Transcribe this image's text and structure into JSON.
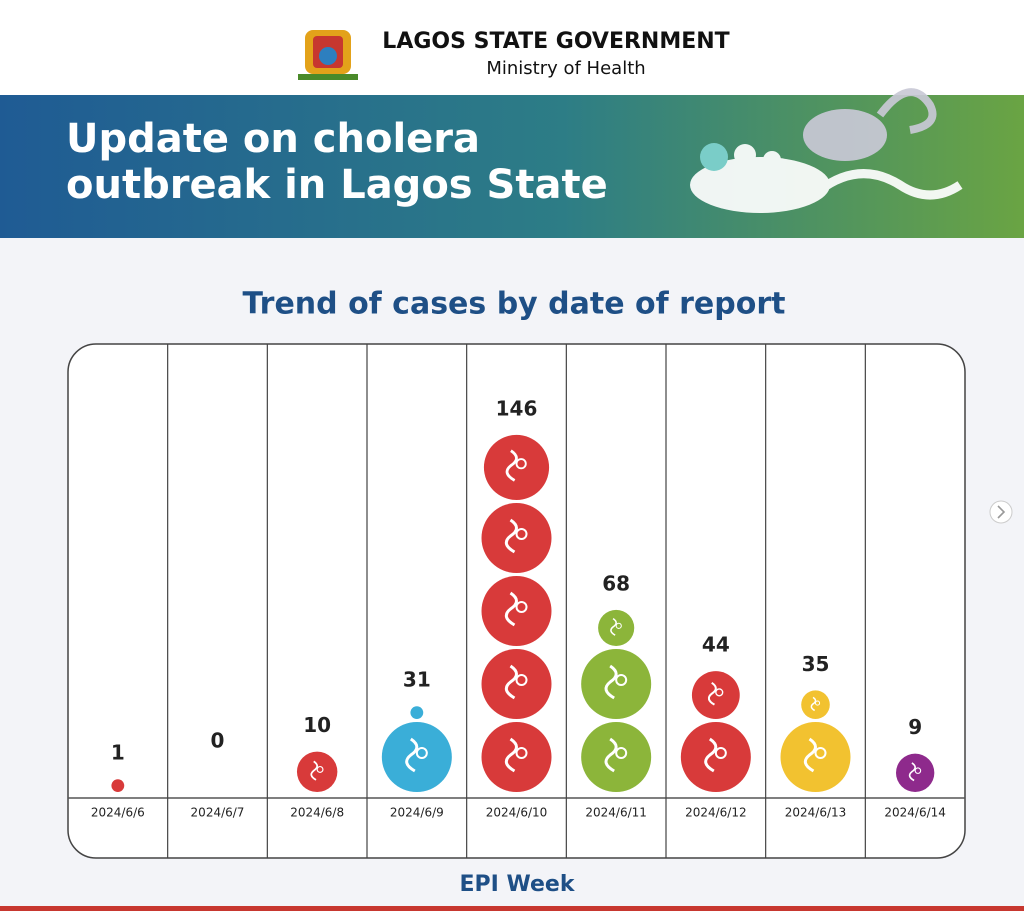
{
  "header": {
    "org": "LAGOS STATE GOVERNMENT",
    "ministry": "Ministry of Health",
    "banner_title": [
      "Update on cholera",
      "outbreak in Lagos State"
    ]
  },
  "chart_data": {
    "type": "pictogram",
    "title": "Trend of cases by date of report",
    "x_label": "EPI Week",
    "categories": [
      "2024/6/6",
      "2024/6/7",
      "2024/6/8",
      "2024/6/9",
      "2024/6/10",
      "2024/6/11",
      "2024/6/12",
      "2024/6/13",
      "2024/6/14"
    ],
    "values": [
      1,
      0,
      10,
      31,
      146,
      68,
      44,
      35,
      9
    ],
    "colors": [
      "#d83a3a",
      null,
      "#d83a3a",
      "#3aaed8",
      "#d83a3a",
      "#8cb53a",
      "#d83a3a",
      "#f2c230",
      "#8e2a8c"
    ]
  }
}
